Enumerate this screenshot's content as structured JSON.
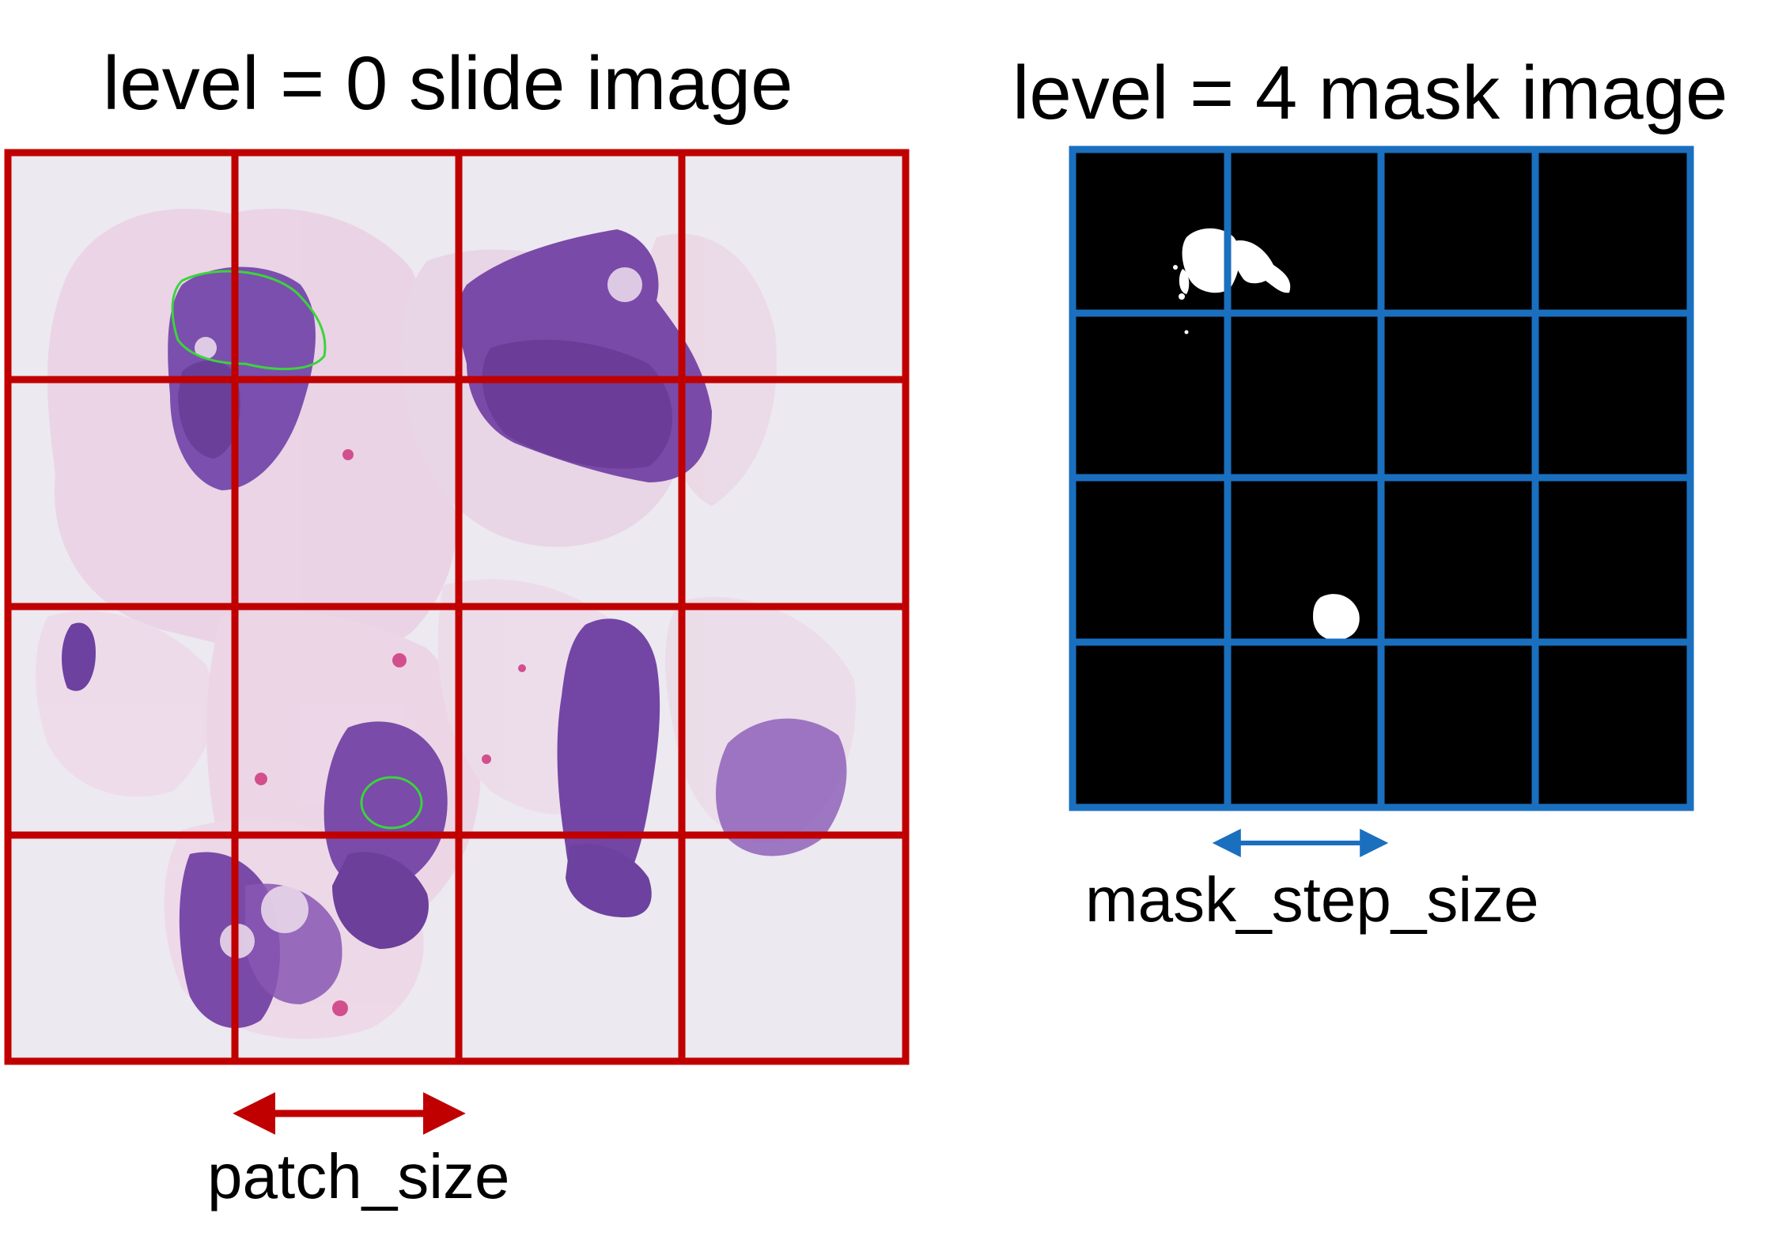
{
  "left_panel": {
    "title": "level = 0 slide image",
    "grid_rows": 4,
    "grid_cols": 4,
    "grid_color": "#c00000",
    "dimension_label": "patch_size"
  },
  "right_panel": {
    "title": "level = 4 mask image",
    "grid_rows": 4,
    "grid_cols": 4,
    "grid_color": "#1a6fbf",
    "dimension_label": "mask_step_size"
  },
  "colors": {
    "slide_background": "#ece9f0",
    "tissue_light": "#e9c9df",
    "tissue_pink": "#d690bf",
    "tissue_dark": "#6a3fa0",
    "tissue_mid": "#8a55b5",
    "tumor_outline": "#3bd43b",
    "mask_background": "#000000",
    "mask_foreground": "#ffffff"
  }
}
